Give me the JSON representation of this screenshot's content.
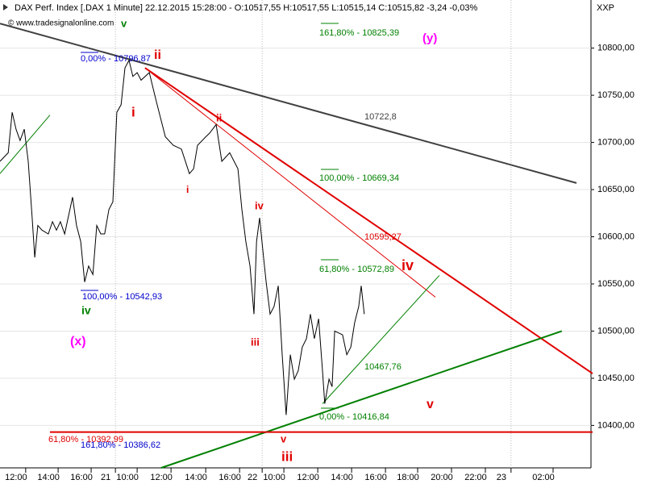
{
  "header": {
    "title": "DAX Perf. Index [.DAX  1 Minute] 22.12.2015 15:28:00 - O:10517,55 H:10517,55 L:10515,14 C:10515,82 -3,24 -0,03%",
    "credit": "© www.tradesignalonline.com",
    "corner": "XXP"
  },
  "chart_data": {
    "type": "line",
    "color": "#000000",
    "grid": true,
    "x": [
      0,
      29,
      43,
      57,
      71,
      86,
      100,
      114,
      123,
      134,
      149,
      171,
      186,
      200,
      214,
      229,
      257,
      271,
      286,
      300,
      314,
      329,
      343,
      357,
      371,
      386,
      400,
      414,
      429,
      443,
      457,
      471,
      486,
      500,
      529,
      543,
      557,
      586,
      614,
      643,
      671,
      686,
      700,
      729,
      743,
      766,
      786,
      814,
      843,
      857,
      871,
      886,
      900,
      909,
      920,
      934,
      943,
      957,
      971,
      986,
      1000,
      1014,
      1029,
      1043,
      1057,
      1071,
      1086,
      1100,
      1114,
      1129,
      1143,
      1151,
      1166,
      1177,
      1186,
      1214,
      1229,
      1243,
      1257,
      1271,
      1280,
      1291
    ],
    "values": [
      10680,
      10689,
      10732,
      10714,
      10702,
      10714,
      10680,
      10620,
      10578,
      10612,
      10607,
      10603,
      10616,
      10607,
      10616,
      10603,
      10642,
      10612,
      10595,
      10552,
      10569,
      10560,
      10612,
      10603,
      10603,
      10629,
      10637,
      10732,
      10740,
      10779,
      10787,
      10770,
      10774,
      10766,
      10774,
      10757,
      10740,
      10706,
      10697,
      10693,
      10667,
      10672,
      10697,
      10706,
      10710,
      10719,
      10680,
      10689,
      10672,
      10629,
      10595,
      10569,
      10518,
      10595,
      10620,
      10578,
      10552,
      10518,
      10526,
      10548,
      10475,
      10411,
      10475,
      10449,
      10458,
      10483,
      10492,
      10518,
      10492,
      10513,
      10458,
      10423,
      10449,
      10441,
      10500,
      10496,
      10475,
      10483,
      10509,
      10526,
      10548,
      10518
    ],
    "xlim": [
      0,
      2100
    ],
    "ylim": [
      10355,
      10851
    ],
    "xticks": [
      {
        "value": 91,
        "label": "12:00"
      },
      {
        "value": 206,
        "label": "14:00"
      },
      {
        "value": 323,
        "label": "16:00"
      },
      {
        "value": 409,
        "label": "21"
      },
      {
        "value": 486,
        "label": "10:00"
      },
      {
        "value": 606,
        "label": "12:00"
      },
      {
        "value": 729,
        "label": "14:00"
      },
      {
        "value": 849,
        "label": "16:00"
      },
      {
        "value": 929,
        "label": "22"
      },
      {
        "value": 1006,
        "label": "10:00"
      },
      {
        "value": 1126,
        "label": "12:00"
      },
      {
        "value": 1246,
        "label": "14:00"
      },
      {
        "value": 1366,
        "label": "16:00"
      },
      {
        "value": 1480,
        "label": "18:00"
      },
      {
        "value": 1600,
        "label": "20:00"
      },
      {
        "value": 1720,
        "label": "22:00"
      },
      {
        "value": 1811,
        "label": "23"
      },
      {
        "value": 1960,
        "label": "02:00"
      }
    ],
    "yticks": [
      {
        "value": 10400,
        "label": "10400,00"
      },
      {
        "value": 10450,
        "label": "10450,00"
      },
      {
        "value": 10500,
        "label": "10500,00"
      },
      {
        "value": 10550,
        "label": "10550,00"
      },
      {
        "value": 10600,
        "label": "10600,00"
      },
      {
        "value": 10650,
        "label": "10650,00"
      },
      {
        "value": 10700,
        "label": "10700,00"
      },
      {
        "value": 10750,
        "label": "10750,00"
      },
      {
        "value": 10800,
        "label": "10800,00"
      }
    ],
    "trendlines": [
      {
        "color": "#404040",
        "x": [
          0,
          2043
        ],
        "values": [
          10826,
          10657
        ]
      },
      {
        "color": "#e00000",
        "x": [
          514,
          2100
        ],
        "values": [
          10779,
          10455
        ]
      },
      {
        "color": "#e00000",
        "x": [
          514,
          1543
        ],
        "values": [
          10779,
          10536
        ]
      },
      {
        "color": "#008000",
        "x": [
          1143,
          1557
        ],
        "values": [
          10423,
          10559
        ]
      },
      {
        "color": "#008000",
        "x": [
          571,
          1991
        ],
        "values": [
          10355,
          10500
        ]
      },
      {
        "color": "#008000",
        "x": [
          0,
          177
        ],
        "values": [
          10667,
          10729
        ]
      },
      {
        "color": "#e00000",
        "x": [
          177,
          2100
        ],
        "values": [
          10393,
          10393
        ]
      }
    ],
    "annotations": [
      {
        "text": "v",
        "color": "#008000"
      },
      {
        "text": "(y)",
        "color": "#ff00ff"
      },
      {
        "text": "161,80% - 10825,39",
        "color": "#008000"
      },
      {
        "text": "0,00% - 10796,87",
        "color": "#0000cc"
      },
      {
        "text": "ii",
        "color": "#e00000"
      },
      {
        "text": "i",
        "color": "#e00000"
      },
      {
        "text": "ii",
        "color": "#e00000"
      },
      {
        "text": "i",
        "color": "#e00000"
      },
      {
        "text": "10722,8",
        "color": "#404040"
      },
      {
        "text": "100,00% - 10669,34",
        "color": "#008000"
      },
      {
        "text": "iv",
        "color": "#e00000"
      },
      {
        "text": "10595,27",
        "color": "#e00000"
      },
      {
        "text": "61,80% - 10572,89",
        "color": "#008000"
      },
      {
        "text": "iv",
        "color": "#e00000"
      },
      {
        "text": "100,00% - 10542,93",
        "color": "#0000cc"
      },
      {
        "text": "iv",
        "color": "#008000"
      },
      {
        "text": "(x)",
        "color": "#ff00ff"
      },
      {
        "text": "iii",
        "color": "#e00000"
      },
      {
        "text": "10467,76",
        "color": "#008000"
      },
      {
        "text": "v",
        "color": "#e00000"
      },
      {
        "text": "0,00% - 10416,84",
        "color": "#008000"
      },
      {
        "text": "61,80% - 10392,99",
        "color": "#e00000"
      },
      {
        "text": "161,80% - 10386,62",
        "color": "#0000cc"
      },
      {
        "text": "v",
        "color": "#e00000"
      },
      {
        "text": "iii",
        "color": "#e00000"
      }
    ]
  }
}
